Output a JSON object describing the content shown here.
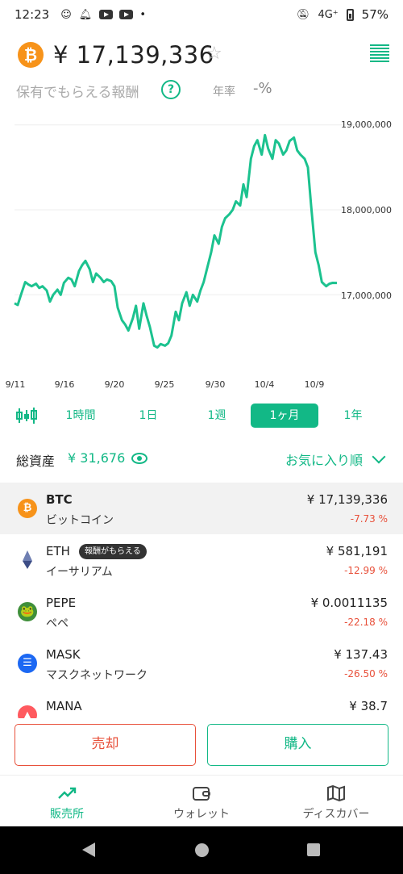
{
  "status_bar": {
    "time": "12:23",
    "network": "4G⁺",
    "battery": "57%"
  },
  "header": {
    "price": "¥ 17,139,336",
    "coin_logo": "₿"
  },
  "reward": {
    "label": "保有でもらえる報酬",
    "help": "?",
    "rate_label": "年率",
    "rate_value": "-%"
  },
  "chart_data": {
    "type": "line",
    "title": "",
    "xlabel": "",
    "ylabel": "",
    "y_ticks": [
      "19,000,000",
      "18,000,000",
      "17,000,000"
    ],
    "ylim": [
      16290000,
      19140000
    ],
    "x_tick_labels": [
      "9/11",
      "9/16",
      "9/20",
      "9/25",
      "9/30",
      "10/4",
      "10/9"
    ],
    "series": [
      {
        "color": "#1cc28f",
        "x": [
          0,
          0.3,
          0.6,
          1,
          1.3,
          1.6,
          2,
          2.3,
          2.6,
          3,
          3.3,
          3.6,
          4,
          4.3,
          4.6,
          5,
          5.3,
          5.6,
          6,
          6.3,
          6.6,
          7,
          7.3,
          7.6,
          8,
          8.3,
          8.6,
          9,
          9.3,
          9.6,
          10,
          10.3,
          10.6,
          11,
          11.3,
          11.6,
          12,
          12.3,
          12.6,
          13,
          13.3,
          13.6,
          14,
          14.3,
          14.6,
          15,
          15.3,
          15.6,
          16,
          16.3,
          16.6,
          17,
          17.3,
          17.6,
          18,
          18.3,
          18.6,
          19,
          19.3,
          19.6,
          20,
          20.3,
          20.6,
          21,
          21.3,
          21.6,
          22,
          22.3,
          22.6,
          23,
          23.3,
          23.6,
          24,
          24.3,
          24.6,
          25,
          25.3,
          25.6,
          26,
          26.3,
          26.6,
          27,
          27.3,
          27.6,
          28,
          28.3,
          28.6,
          29,
          29.3,
          29.6,
          30
        ],
        "y": [
          16900000,
          16880000,
          17000000,
          17150000,
          17120000,
          17100000,
          17130000,
          17080000,
          17100000,
          17050000,
          16920000,
          17000000,
          17060000,
          17000000,
          17140000,
          17200000,
          17180000,
          17100000,
          17280000,
          17350000,
          17400000,
          17300000,
          17150000,
          17250000,
          17200000,
          17150000,
          17180000,
          17160000,
          17100000,
          16850000,
          16700000,
          16650000,
          16580000,
          16720000,
          16870000,
          16600000,
          16900000,
          16750000,
          16620000,
          16400000,
          16380000,
          16420000,
          16400000,
          16430000,
          16520000,
          16800000,
          16700000,
          16900000,
          17030000,
          16870000,
          17000000,
          16920000,
          17050000,
          17150000,
          17350000,
          17500000,
          17700000,
          17600000,
          17800000,
          17900000,
          17950000,
          18000000,
          18100000,
          18050000,
          18300000,
          18150000,
          18600000,
          18750000,
          18820000,
          18650000,
          18880000,
          18720000,
          18600000,
          18820000,
          18780000,
          18650000,
          18700000,
          18810000,
          18850000,
          18700000,
          18650000,
          18600000,
          18500000,
          18050000,
          17500000,
          17350000,
          17150000,
          17100000,
          17130000,
          17140000,
          17139336
        ],
        "x_scale_note": "days since 9/11"
      }
    ]
  },
  "range_tabs": {
    "candle_icon": "candlestick-icon",
    "tabs": [
      "1時間",
      "1日",
      "1週",
      "1ヶ月",
      "1年"
    ],
    "active": "1ヶ月"
  },
  "assets": {
    "label": "総資産",
    "value": "¥ 31,676",
    "sort": "お気に入り順"
  },
  "coins": [
    {
      "symbol": "BTC",
      "name": "ビットコイン",
      "price": "¥ 17,139,336",
      "change": "-7.73 %",
      "icon_color": "#f7931a",
      "icon_glyph": "₿"
    },
    {
      "symbol": "ETH",
      "name": "イーサリアム",
      "price": "¥ 581,191",
      "change": "-12.99 %",
      "badge": "報酬がもらえる"
    },
    {
      "symbol": "PEPE",
      "name": "ペペ",
      "price": "¥ 0.0011135",
      "change": "-22.18 %",
      "icon_color": "#3f8f3a",
      "icon_glyph": "🐸"
    },
    {
      "symbol": "MASK",
      "name": "マスクネットワーク",
      "price": "¥ 137.43",
      "change": "-26.50 %",
      "icon_color": "#1c68f3",
      "icon_glyph": "☰"
    },
    {
      "symbol": "MANA",
      "name": "",
      "price": "¥ 38.7",
      "change": "",
      "icon_color": "#ff5a5f",
      "icon_glyph": "▲"
    }
  ],
  "actions": {
    "sell": "売却",
    "buy": "購入"
  },
  "nav": {
    "items": [
      "販売所",
      "ウォレット",
      "ディスカバー"
    ]
  },
  "colors": {
    "accent": "#12b886",
    "down": "#e8503a"
  }
}
